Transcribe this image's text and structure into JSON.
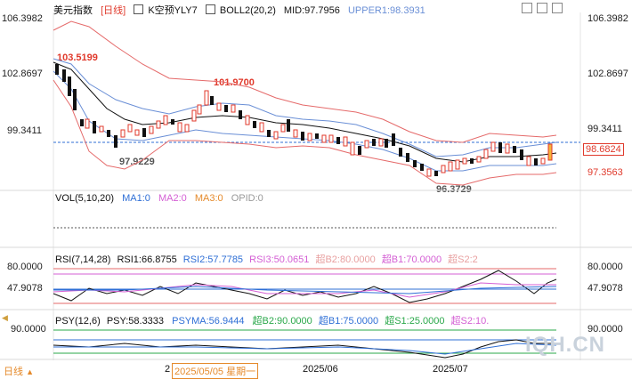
{
  "header": {
    "symbol": "美元指数",
    "period_btn": "[日线]",
    "ind1_icon": "chart-toggle-icon",
    "ind1_label": "K空预YLY7",
    "ind2_label": "BOLL2(20,2)",
    "mid": "MID:97.7956",
    "upper": "UPPER1:98.3931",
    "price_top": "106.3982",
    "colors": {
      "mid": "#7a3fb0",
      "upper": "#6a8fd6",
      "up": "#e0392b",
      "down": "#111111"
    }
  },
  "main": {
    "left_ticks": [
      "106.3982",
      "102.8697",
      "99.3411"
    ],
    "right_ticks": [
      "106.3982",
      "102.8697",
      "99.3411"
    ],
    "current_price": "98.6824",
    "low_label_right": "97.3563",
    "annotations": [
      "103.5199",
      "101.9700",
      "97.9229",
      "96.3729"
    ]
  },
  "volume": {
    "title": "VOL(5,10,20)",
    "ma1": "MA1:0",
    "ma2": "MA2:0",
    "ma3": "MA3:0",
    "opid": "OPID:0"
  },
  "rsi": {
    "title": "RSI(7,14,28)",
    "rsi1": "RSI1:66.8755",
    "rsi2": "RSI2:57.7785",
    "rsi3": "RSI3:50.0651",
    "sb2": "超B2:80.0000",
    "sb1": "超B1:70.0000",
    "ss2": "超S2:2",
    "left_ticks": [
      "80.0000",
      "47.9078"
    ],
    "right_ticks": [
      "80.0000",
      "47.9078"
    ]
  },
  "psy": {
    "title": "PSY(12,6)",
    "psy": "PSY:58.3333",
    "psyma": "PSYMA:56.9444",
    "b2": "超B2:90.0000",
    "b1": "超B1:75.0000",
    "s1": "超S1:25.0000",
    "s2": "超S2:10.",
    "left_tick": "90.0000",
    "right_tick": "90.0000"
  },
  "footer": {
    "period": "日线",
    "date_cursor": "2025/05/05 星期一",
    "date_prefix": "2",
    "month1": "2025/06",
    "month2": "2025/07",
    "watermark": "IQH.CN"
  }
}
